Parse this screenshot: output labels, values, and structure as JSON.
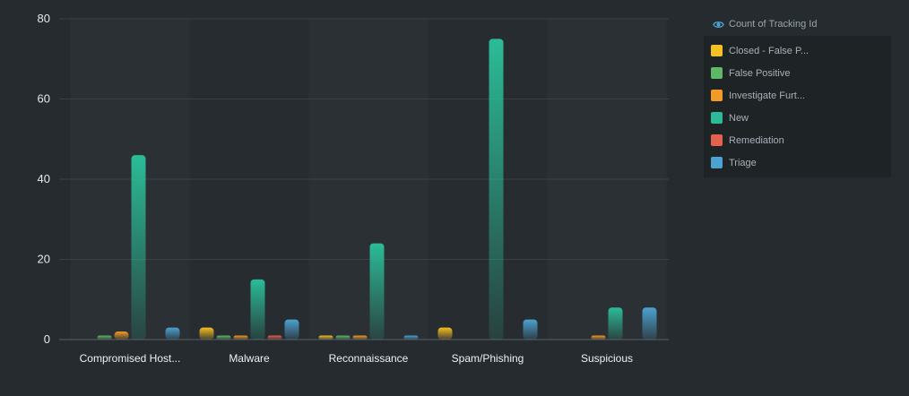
{
  "chart_data": {
    "type": "bar",
    "categories": [
      "Compromised Host...",
      "Malware",
      "Reconnaissance",
      "Spam/Phishing",
      "Suspicious"
    ],
    "ylim": [
      0,
      80
    ],
    "yticks": [
      "0",
      "20",
      "40",
      "60",
      "80"
    ],
    "grid": true,
    "legend_position": "right",
    "legend_title": "Count of Tracking Id",
    "series": [
      {
        "name": "Closed - False P...",
        "color": "#f5c022",
        "values": [
          0,
          3,
          1,
          3,
          0
        ]
      },
      {
        "name": "False Positive",
        "color": "#5fb865",
        "values": [
          1,
          1,
          1,
          0,
          0
        ]
      },
      {
        "name": "Investigate Furt...",
        "color": "#f29a26",
        "values": [
          2,
          1,
          1,
          0,
          1
        ]
      },
      {
        "name": "New",
        "color": "#2bbc97",
        "values": [
          46,
          15,
          24,
          75,
          8
        ]
      },
      {
        "name": "Remediation",
        "color": "#e4604f",
        "values": [
          0,
          1,
          0,
          0,
          0
        ]
      },
      {
        "name": "Triage",
        "color": "#4ca2d0",
        "values": [
          3,
          5,
          1,
          5,
          8
        ]
      }
    ]
  }
}
